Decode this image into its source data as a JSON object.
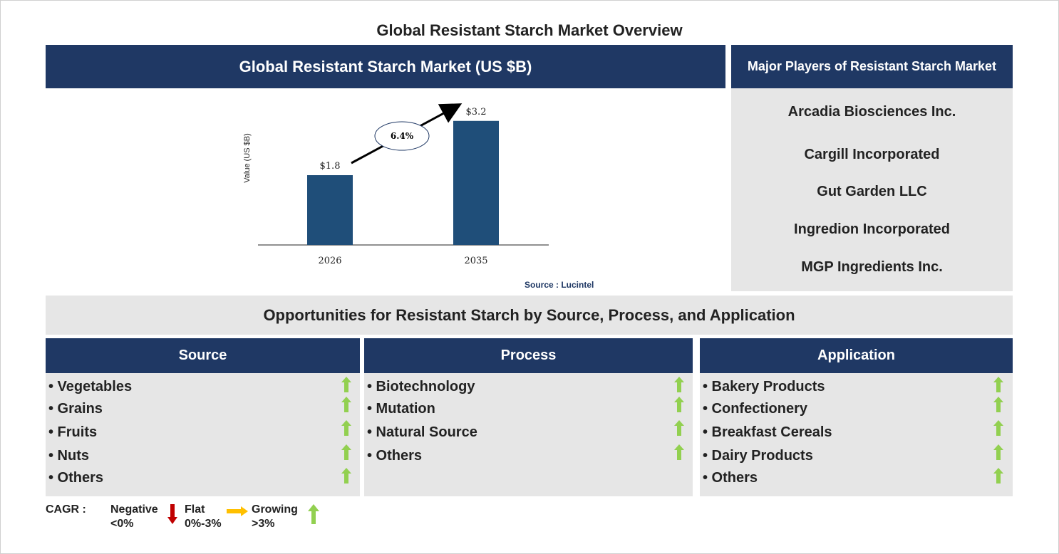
{
  "page_title": "Global Resistant Starch Market Overview",
  "chart_header": "Global Resistant Starch Market (US $B)",
  "chart_data": {
    "type": "bar",
    "categories": [
      "2026",
      "2035"
    ],
    "values": [
      1.8,
      3.2
    ],
    "value_labels": [
      "$1.8",
      "$3.2"
    ],
    "ylabel": "Value (US $B)",
    "ylim": [
      0,
      3.6
    ],
    "cagr_label": "6.4%",
    "bar_color": "#1f4e79",
    "grid": false
  },
  "source": "Source : Lucintel",
  "players": {
    "header": "Major Players of Resistant Starch Market",
    "items": [
      "Arcadia Biosciences Inc.",
      "Cargill Incorporated",
      "Gut Garden LLC",
      "Ingredion Incorporated",
      "MGP Ingredients Inc."
    ]
  },
  "opportunities_title": "Opportunities for Resistant Starch by Source, Process, and Application",
  "segments": [
    {
      "title": "Source",
      "items": [
        "• Vegetables",
        "• Grains",
        "• Fruits",
        "• Nuts",
        "• Others"
      ]
    },
    {
      "title": "Process",
      "items": [
        "• Biotechnology",
        "• Mutation",
        "• Natural Source",
        "• Others"
      ]
    },
    {
      "title": "Application",
      "items": [
        "• Bakery Products",
        "• Confectionery",
        "• Breakfast Cereals",
        "• Dairy Products",
        "• Others"
      ]
    }
  ],
  "legend": {
    "cagr_label": "CAGR  :",
    "negative_1": "Negative",
    "negative_2": "<0%",
    "flat_1": "Flat",
    "flat_2": "0%-3%",
    "growing_1": "Growing",
    "growing_2": ">3%"
  },
  "colors": {
    "navy": "#1f3864",
    "grey": "#e6e6e6",
    "growing_arrow": "#92d050",
    "negative_arrow": "#c00000",
    "flat_arrow": "#ffc000"
  }
}
